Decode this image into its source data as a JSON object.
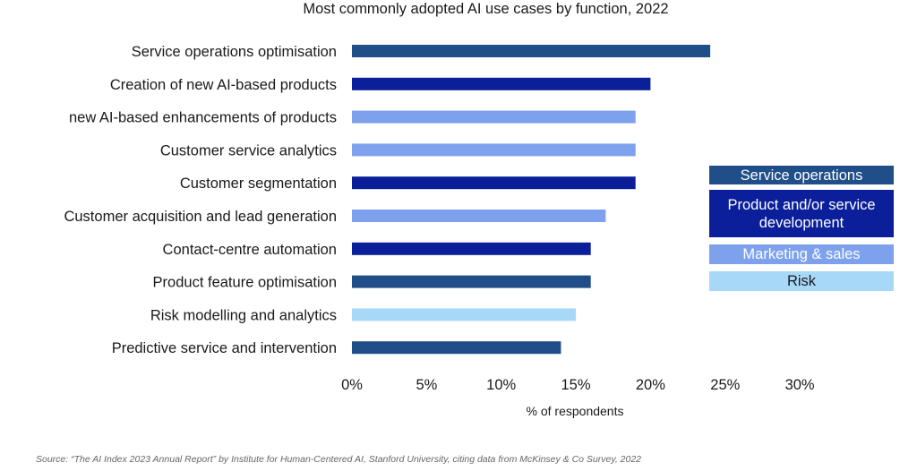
{
  "chart_data": {
    "type": "bar",
    "orientation": "horizontal",
    "title": "Most commonly adopted AI use cases by function, 2022",
    "xlabel": "% of respondents",
    "ylabel": "",
    "xlim": [
      0,
      30
    ],
    "x_ticks": [
      "0%",
      "5%",
      "10%",
      "15%",
      "20%",
      "25%",
      "30%"
    ],
    "x_tick_values": [
      0,
      5,
      10,
      15,
      20,
      25,
      30
    ],
    "grid": false,
    "legend_position": "right",
    "categories": [
      "Service operations optimisation",
      "Creation of new AI-based products",
      "new AI-based enhancements of products",
      "Customer service analytics",
      "Customer segmentation",
      "Customer acquisition and lead generation",
      "Contact-centre automation",
      "Product feature optimisation",
      "Risk modelling and analytics",
      "Predictive service and intervention"
    ],
    "values": [
      24,
      20,
      19,
      19,
      19,
      17,
      16,
      16,
      15,
      14
    ],
    "bar_groups": [
      "Service operations",
      "Product and/or service development",
      "Marketing & sales",
      "Marketing & sales",
      "Product and/or service development",
      "Marketing & sales",
      "Product and/or service development",
      "Service operations",
      "Risk",
      "Service operations"
    ],
    "legend": [
      {
        "label": "Service operations",
        "color": "#1f4e89"
      },
      {
        "label": "Product and/or service development",
        "color": "#0a1f99"
      },
      {
        "label": "Marketing & sales",
        "color": "#7ea1ee"
      },
      {
        "label": "Risk",
        "color": "#a8d8f8"
      }
    ]
  },
  "source": "Source: “The AI Index 2023 Annual Report” by Institute for Human-Centered AI, Stanford University, citing data from McKinsey & Co Survey, 2022"
}
